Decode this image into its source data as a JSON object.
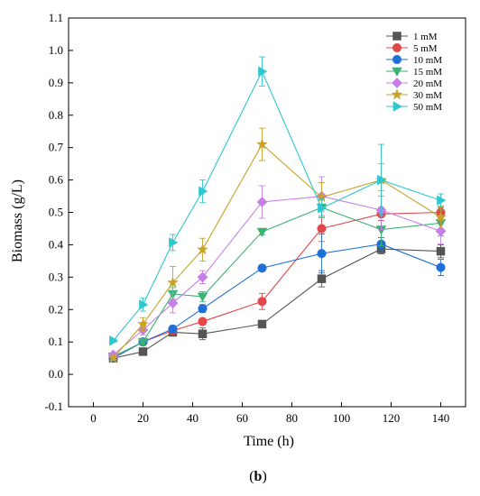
{
  "figure_label": {
    "open": "(",
    "letter": "b",
    "close": ")"
  },
  "chart_data": {
    "type": "line",
    "xlabel": "Time (h)",
    "ylabel": "Biomass (g/L)",
    "xlim": [
      -10,
      150
    ],
    "ylim": [
      -0.1,
      1.1
    ],
    "xticks": [
      0,
      20,
      40,
      60,
      80,
      100,
      120,
      140
    ],
    "yticks": [
      -0.1,
      0.0,
      0.1,
      0.2,
      0.3,
      0.4,
      0.5,
      0.6,
      0.7,
      0.8,
      0.9,
      1.0,
      1.1
    ],
    "x": [
      8,
      20,
      32,
      44,
      68,
      92,
      116,
      140
    ],
    "legend_position": "top-right",
    "grid": false,
    "series": [
      {
        "name": "1 mM",
        "color": "#555555",
        "marker": "square",
        "values": [
          0.05,
          0.07,
          0.13,
          0.125,
          0.155,
          0.295,
          0.387,
          0.38
        ],
        "errors": [
          0.005,
          0.008,
          0.012,
          0.018,
          0.01,
          0.025,
          0.015,
          0.02
        ]
      },
      {
        "name": "5 mM",
        "color": "#e0484a",
        "marker": "circle",
        "values": [
          0.05,
          0.1,
          0.135,
          0.163,
          0.225,
          0.45,
          0.495,
          0.5
        ],
        "errors": [
          0.005,
          0.01,
          0.01,
          0.01,
          0.025,
          0.04,
          0.02,
          0.015
        ]
      },
      {
        "name": "10 mM",
        "color": "#1f6fd6",
        "marker": "circle",
        "values": [
          0.05,
          0.1,
          0.14,
          0.203,
          0.328,
          0.373,
          0.402,
          0.33
        ],
        "errors": [
          0.005,
          0.008,
          0.01,
          0.012,
          0.01,
          0.06,
          0.02,
          0.025
        ]
      },
      {
        "name": "15 mM",
        "color": "#3bb273",
        "marker": "triangle-down",
        "values": [
          0.055,
          0.1,
          0.248,
          0.24,
          0.44,
          0.515,
          0.447,
          0.467
        ],
        "errors": [
          0.005,
          0.01,
          0.02,
          0.015,
          0.01,
          0.03,
          0.05,
          0.04
        ]
      },
      {
        "name": "20 mM",
        "color": "#c77fe8",
        "marker": "diamond",
        "values": [
          0.06,
          0.137,
          0.22,
          0.3,
          0.532,
          0.55,
          0.507,
          0.442
        ],
        "errors": [
          0.005,
          0.015,
          0.03,
          0.02,
          0.05,
          0.06,
          0.06,
          0.04
        ]
      },
      {
        "name": "30 mM",
        "color": "#c9a227",
        "marker": "star",
        "values": [
          0.05,
          0.155,
          0.283,
          0.385,
          0.71,
          0.547,
          0.6,
          0.485
        ],
        "errors": [
          0.005,
          0.02,
          0.05,
          0.035,
          0.05,
          0.045,
          0.05,
          0.035
        ]
      },
      {
        "name": "50 mM",
        "color": "#2ec7cf",
        "marker": "triangle-right",
        "values": [
          0.104,
          0.215,
          0.407,
          0.565,
          0.935,
          0.513,
          0.6,
          0.537
        ],
        "errors": [
          0.005,
          0.02,
          0.025,
          0.035,
          0.045,
          0.03,
          0.11,
          0.02
        ]
      }
    ]
  }
}
